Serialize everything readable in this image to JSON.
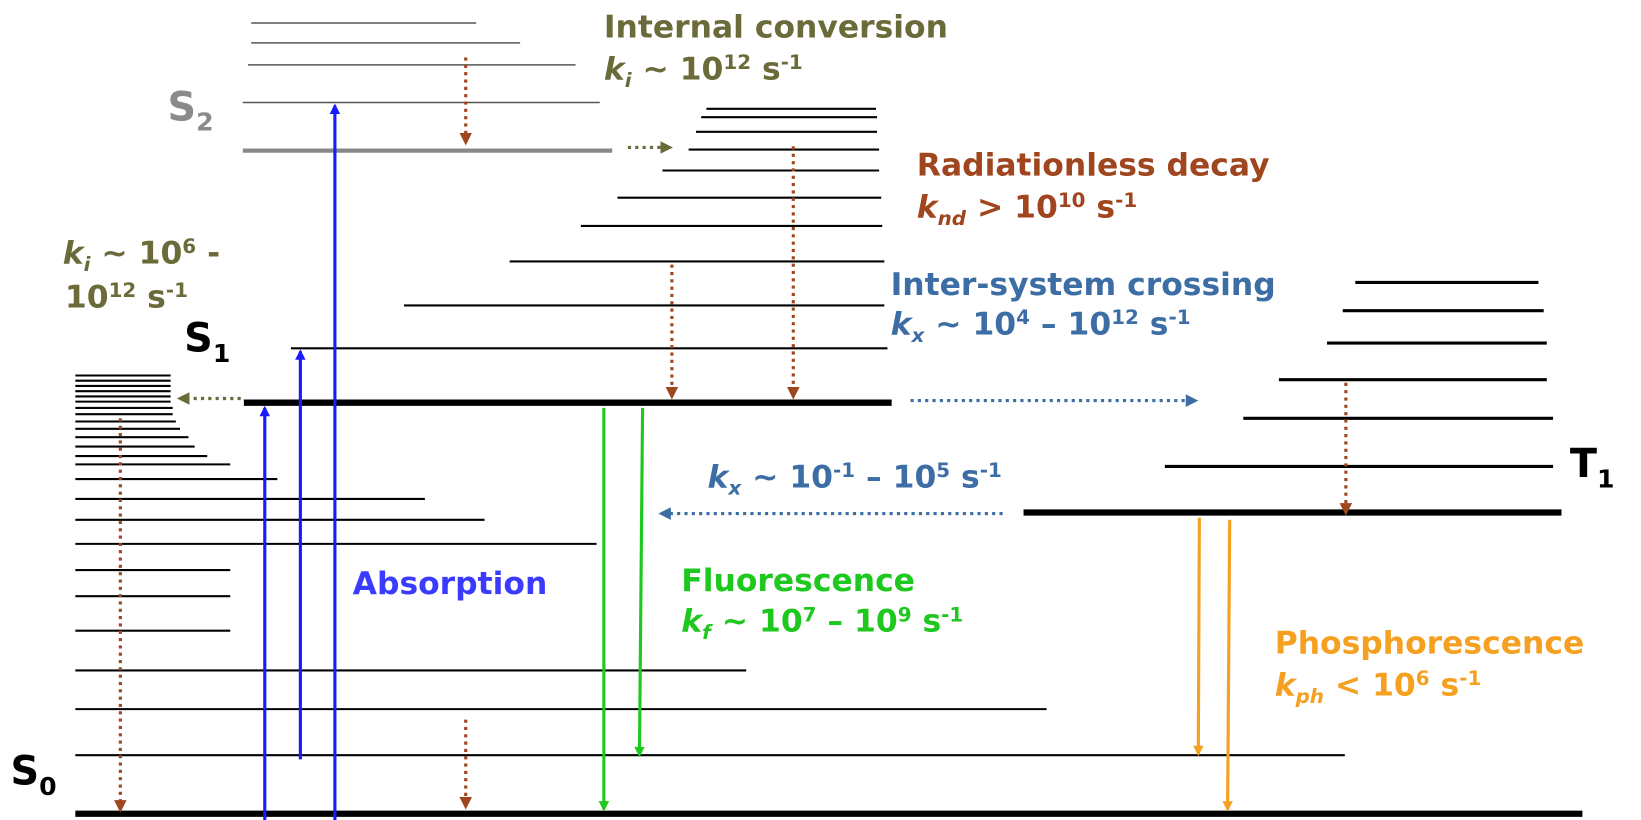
{
  "labels": {
    "s2": {
      "parts": [
        "S",
        "2"
      ],
      "kinds": [
        "normal",
        "sub"
      ]
    },
    "s1": {
      "parts": [
        "S",
        "1"
      ],
      "kinds": [
        "normal",
        "sub"
      ]
    },
    "s0": {
      "parts": [
        "S",
        "0"
      ],
      "kinds": [
        "normal",
        "sub"
      ]
    },
    "t1": {
      "parts": [
        "T",
        "1"
      ],
      "kinds": [
        "normal",
        "sub"
      ]
    }
  },
  "internal_conversion": {
    "title": "Internal conversion",
    "rate": {
      "parts": [
        "k",
        "i",
        " ~ 10",
        "12",
        " s",
        "-1"
      ],
      "kinds": [
        "italic",
        "sub",
        "normal",
        "sup",
        "normal",
        "sup"
      ]
    }
  },
  "internal_conversion_s1": {
    "line1": {
      "parts": [
        "k",
        "i",
        " ~ 10",
        "6",
        " -"
      ],
      "kinds": [
        "italic",
        "sub",
        "normal",
        "sup",
        "normal"
      ]
    },
    "line2": {
      "parts": [
        "10",
        "12",
        " s",
        "-1"
      ],
      "kinds": [
        "normal",
        "sup",
        "normal",
        "sup"
      ]
    }
  },
  "radiationless_decay": {
    "title": "Radiationless decay",
    "rate": {
      "parts": [
        "k",
        "nd",
        " > 10",
        "10",
        " s",
        "-1"
      ],
      "kinds": [
        "italic",
        "sub",
        "normal",
        "sup",
        "normal",
        "sup"
      ]
    }
  },
  "intersystem_crossing": {
    "title": "Inter-system crossing",
    "rate": {
      "parts": [
        "k",
        "x",
        " ~ 10",
        "4",
        " – 10",
        "12",
        " s",
        "-1"
      ],
      "kinds": [
        "italic",
        "sub",
        "normal",
        "sup",
        "normal",
        "sup",
        "normal",
        "sup"
      ]
    }
  },
  "reverse_intersystem_crossing": {
    "rate": {
      "parts": [
        "k",
        "x",
        " ~ 10",
        "-1",
        " – 10",
        "5",
        " s",
        "-1"
      ],
      "kinds": [
        "italic",
        "sub",
        "normal",
        "sup",
        "normal",
        "sup",
        "normal",
        "sup"
      ]
    }
  },
  "absorption": {
    "title": "Absorption"
  },
  "fluorescence": {
    "title": "Fluorescence",
    "rate": {
      "parts": [
        "k",
        "f",
        " ~ 10",
        "7",
        " – 10",
        "9",
        " s",
        "-1"
      ],
      "kinds": [
        "italic",
        "sub",
        "normal",
        "sup",
        "normal",
        "sup",
        "normal",
        "sup"
      ]
    }
  },
  "phosphorescence": {
    "title": "Phosphorescence",
    "rate": {
      "parts": [
        "k",
        "ph",
        " < 10",
        "6",
        " s",
        "-1"
      ],
      "kinds": [
        "italic",
        "sub",
        "normal",
        "sup",
        "normal",
        "sup"
      ]
    }
  }
}
